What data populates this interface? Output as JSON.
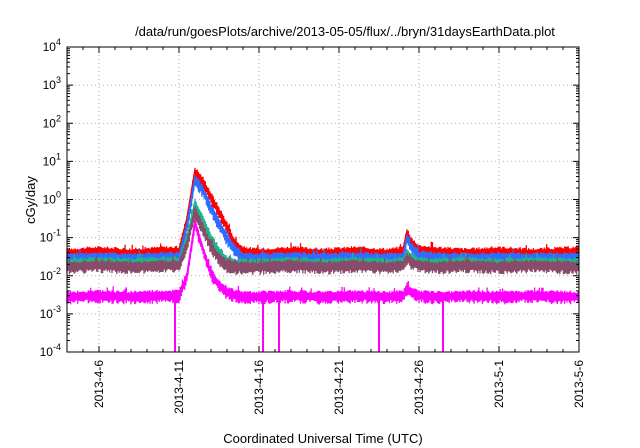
{
  "chart_data": {
    "type": "line",
    "title": "/data/run/goesPlots/archive/2013-05-05/flux/../bryn/31daysEarthData.plot",
    "xlabel": "Coordinated Universal Time (UTC)",
    "ylabel": "cGy/day",
    "y_scale": "log",
    "ylim": [
      0.0001,
      10000
    ],
    "xlim": [
      "2013-04-04",
      "2013-05-06"
    ],
    "grid": true,
    "x_ticks": [
      "2013-4-6",
      "2013-4-11",
      "2013-4-16",
      "2013-4-21",
      "2013-4-26",
      "2013-5-1",
      "2013-5-6"
    ],
    "x_tick_dates": [
      "2013-04-06",
      "2013-04-11",
      "2013-04-16",
      "2013-04-21",
      "2013-04-26",
      "2013-05-01",
      "2013-05-06"
    ],
    "y_ticks": [
      {
        "value": 0.0001,
        "base": "10",
        "exp": "-4"
      },
      {
        "value": 0.001,
        "base": "10",
        "exp": "-3"
      },
      {
        "value": 0.01,
        "base": "10",
        "exp": "-2"
      },
      {
        "value": 0.1,
        "base": "10",
        "exp": "-1"
      },
      {
        "value": 1,
        "base": "10",
        "exp": "0"
      },
      {
        "value": 10,
        "base": "10",
        "exp": "1"
      },
      {
        "value": 100,
        "base": "10",
        "exp": "2"
      },
      {
        "value": 1000,
        "base": "10",
        "exp": "3"
      },
      {
        "value": 10000,
        "base": "10",
        "exp": "4"
      }
    ],
    "series": [
      {
        "color": "#ff0000",
        "x": [
          "2013-04-04",
          "2013-04-06",
          "2013-04-08",
          "2013-04-10",
          "2013-04-11",
          "2013-04-11T12:00",
          "2013-04-12",
          "2013-04-12T12:00",
          "2013-04-13",
          "2013-04-13T12:00",
          "2013-04-14",
          "2013-04-14T12:00",
          "2013-04-15",
          "2013-04-16",
          "2013-04-18",
          "2013-04-20",
          "2013-04-22",
          "2013-04-24",
          "2013-04-25",
          "2013-04-25T06:00",
          "2013-04-25T12:00",
          "2013-04-26",
          "2013-04-27",
          "2013-04-29",
          "2013-05-01",
          "2013-05-03",
          "2013-05-06"
        ],
        "y": [
          0.04,
          0.045,
          0.04,
          0.045,
          0.045,
          0.3,
          5.5,
          3,
          1.2,
          0.5,
          0.2,
          0.07,
          0.045,
          0.04,
          0.045,
          0.04,
          0.045,
          0.04,
          0.045,
          0.14,
          0.08,
          0.05,
          0.045,
          0.04,
          0.045,
          0.04,
          0.045
        ]
      },
      {
        "color": "#2f6cff",
        "x": [
          "2013-04-04",
          "2013-04-06",
          "2013-04-08",
          "2013-04-10",
          "2013-04-11",
          "2013-04-11T12:00",
          "2013-04-12",
          "2013-04-12T12:00",
          "2013-04-13",
          "2013-04-13T12:00",
          "2013-04-14",
          "2013-04-14T12:00",
          "2013-04-15",
          "2013-04-16",
          "2013-04-18",
          "2013-04-20",
          "2013-04-22",
          "2013-04-24",
          "2013-04-25",
          "2013-04-25T06:00",
          "2013-04-25T12:00",
          "2013-04-26",
          "2013-04-27",
          "2013-04-29",
          "2013-05-01",
          "2013-05-03",
          "2013-05-06"
        ],
        "y": [
          0.03,
          0.032,
          0.03,
          0.032,
          0.032,
          0.2,
          3.5,
          1.8,
          0.6,
          0.25,
          0.1,
          0.05,
          0.032,
          0.03,
          0.032,
          0.03,
          0.032,
          0.03,
          0.032,
          0.1,
          0.06,
          0.035,
          0.032,
          0.03,
          0.032,
          0.03,
          0.032
        ]
      },
      {
        "color": "#1fb58a",
        "x": [
          "2013-04-04",
          "2013-04-06",
          "2013-04-08",
          "2013-04-10",
          "2013-04-11",
          "2013-04-11T12:00",
          "2013-04-12",
          "2013-04-12T12:00",
          "2013-04-13",
          "2013-04-13T12:00",
          "2013-04-14",
          "2013-04-14T12:00",
          "2013-04-15",
          "2013-04-16",
          "2013-04-18",
          "2013-04-20",
          "2013-04-22",
          "2013-04-24",
          "2013-04-25",
          "2013-04-25T06:00",
          "2013-04-25T12:00",
          "2013-04-26",
          "2013-04-27",
          "2013-04-29",
          "2013-05-01",
          "2013-05-03",
          "2013-05-06"
        ],
        "y": [
          0.022,
          0.024,
          0.022,
          0.024,
          0.024,
          0.1,
          0.8,
          0.3,
          0.1,
          0.045,
          0.025,
          0.022,
          0.022,
          0.022,
          0.024,
          0.022,
          0.024,
          0.022,
          0.024,
          0.04,
          0.03,
          0.024,
          0.022,
          0.024,
          0.022,
          0.024,
          0.022
        ]
      },
      {
        "color": "#8a4a6a",
        "x": [
          "2013-04-04",
          "2013-04-06",
          "2013-04-08",
          "2013-04-10",
          "2013-04-11",
          "2013-04-11T12:00",
          "2013-04-12",
          "2013-04-12T12:00",
          "2013-04-13",
          "2013-04-13T12:00",
          "2013-04-14",
          "2013-04-14T12:00",
          "2013-04-15",
          "2013-04-16",
          "2013-04-18",
          "2013-04-20",
          "2013-04-22",
          "2013-04-24",
          "2013-04-25",
          "2013-04-25T06:00",
          "2013-04-25T12:00",
          "2013-04-26",
          "2013-04-27",
          "2013-04-29",
          "2013-05-01",
          "2013-05-03",
          "2013-05-06"
        ],
        "y": [
          0.018,
          0.02,
          0.018,
          0.02,
          0.02,
          0.07,
          0.5,
          0.18,
          0.06,
          0.03,
          0.02,
          0.018,
          0.018,
          0.018,
          0.02,
          0.018,
          0.02,
          0.018,
          0.02,
          0.03,
          0.024,
          0.02,
          0.018,
          0.02,
          0.018,
          0.02,
          0.018
        ]
      },
      {
        "color": "#ff00ff",
        "x": [
          "2013-04-04",
          "2013-04-06",
          "2013-04-08",
          "2013-04-10",
          "2013-04-11",
          "2013-04-11T12:00",
          "2013-04-12",
          "2013-04-12T12:00",
          "2013-04-13",
          "2013-04-13T12:00",
          "2013-04-14",
          "2013-04-14T12:00",
          "2013-04-15",
          "2013-04-16",
          "2013-04-18",
          "2013-04-20",
          "2013-04-22",
          "2013-04-24",
          "2013-04-25",
          "2013-04-25T06:00",
          "2013-04-25T12:00",
          "2013-04-26",
          "2013-04-27",
          "2013-04-29",
          "2013-05-01",
          "2013-05-03",
          "2013-05-06"
        ],
        "y": [
          0.003,
          0.0032,
          0.003,
          0.0032,
          0.0032,
          0.01,
          0.25,
          0.05,
          0.012,
          0.006,
          0.004,
          0.0033,
          0.003,
          0.003,
          0.0032,
          0.003,
          0.0032,
          0.003,
          0.0032,
          0.005,
          0.004,
          0.0032,
          0.003,
          0.0032,
          0.003,
          0.0032,
          0.003
        ],
        "dropouts": [
          "2013-04-10T18:00",
          "2013-04-16T06:00",
          "2013-04-17T06:00",
          "2013-04-23T12:00",
          "2013-04-27T12:00"
        ]
      }
    ]
  }
}
